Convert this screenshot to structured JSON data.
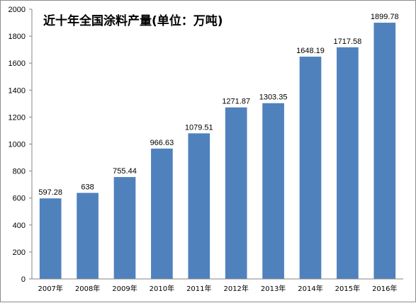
{
  "chart_data": {
    "type": "bar",
    "title": "近十年全国涂料产量(单位：万吨)",
    "categories": [
      "2007年",
      "2008年",
      "2009年",
      "2010年",
      "2011年",
      "2012年",
      "2013年",
      "2014年",
      "2015年",
      "2016年"
    ],
    "values": [
      597.28,
      638,
      755.44,
      966.63,
      1079.51,
      1271.87,
      1303.35,
      1648.19,
      1717.58,
      1899.78
    ],
    "data_labels": [
      "597.28",
      "638",
      "755.44",
      "966.63",
      "1079.51",
      "1271.87",
      "1303.35",
      "1648.19",
      "1717.58",
      "1899.78"
    ],
    "ylim": [
      0,
      2000
    ],
    "yticks": [
      0,
      200,
      400,
      600,
      800,
      1000,
      1200,
      1400,
      1600,
      1800,
      2000
    ],
    "grid": false,
    "legend": "none",
    "colors": {
      "bar": "#4f81bd",
      "axis": "#868686"
    }
  }
}
